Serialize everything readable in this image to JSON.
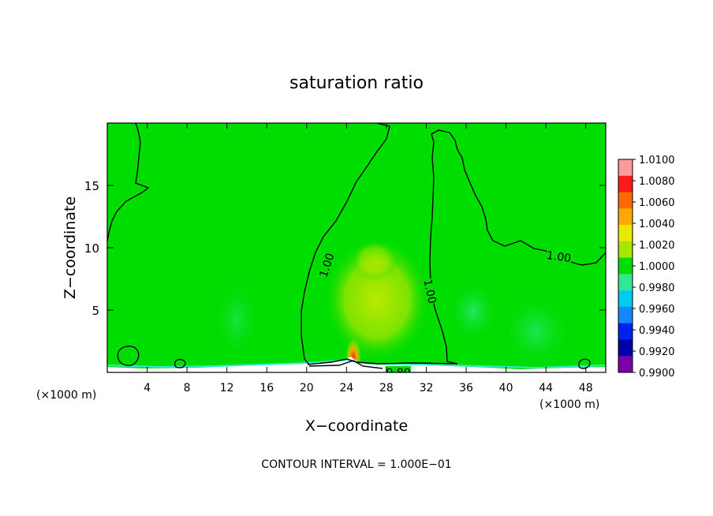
{
  "chart_data": {
    "type": "contour",
    "title": "saturation ratio",
    "xlabel": "X−coordinate",
    "ylabel": "Z−coordinate",
    "x_unit_left": "(×1000 m)",
    "x_unit_right": "(×1000 m)",
    "xlim": [
      0,
      50
    ],
    "ylim": [
      0,
      20
    ],
    "x_ticks": [
      4,
      8,
      12,
      16,
      20,
      24,
      28,
      32,
      36,
      40,
      44,
      48
    ],
    "y_ticks": [
      5,
      10,
      15
    ],
    "footer": "CONTOUR INTERVAL = 1.000E−01",
    "contour_labels": [
      {
        "text": "1.00",
        "x": 22.0,
        "z": 8.6,
        "angle": -72
      },
      {
        "text": "1.00",
        "x": 32.4,
        "z": 6.5,
        "angle": 78
      },
      {
        "text": "1.00",
        "x": 45.3,
        "z": 9.3,
        "angle": 8
      },
      {
        "text": "0.80",
        "x": 29.2,
        "z": 0.0,
        "angle": 0
      }
    ],
    "colorbar": {
      "labels": [
        "1.0100",
        "1.0080",
        "1.0060",
        "1.0040",
        "1.0020",
        "1.0000",
        "0.9980",
        "0.9960",
        "0.9940",
        "0.9920",
        "0.9900"
      ],
      "colors": [
        "#ff9a9a",
        "#ff1a1a",
        "#ff6a00",
        "#ffaa00",
        "#e8e800",
        "#a6e600",
        "#00dd00",
        "#33e890",
        "#00ccee",
        "#1488ff",
        "#0022ee",
        "#0000aa",
        "#7a00aa"
      ],
      "field_background": "#00dd00"
    }
  }
}
